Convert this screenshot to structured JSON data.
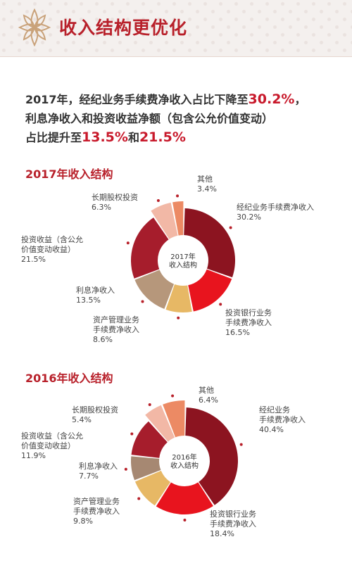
{
  "header": {
    "title": "收入结构更优化"
  },
  "summary": {
    "line1_prefix": "2017年，经纪业务手续费净收入占比下降至",
    "line1_value": "30.2%",
    "line1_suffix": "，",
    "line2": "利息净收入和投资收益净额（包含公允价值变动）",
    "line3_prefix": "占比提升至",
    "line3_value_a": "13.5%",
    "line3_mid": "和",
    "line3_value_b": "21.5%"
  },
  "chart_data": [
    {
      "type": "pie",
      "title": "2017年收入结构",
      "center_label": [
        "2017年",
        "收入结构"
      ],
      "slices": [
        {
          "name": [
            "经纪业务手续费净收入"
          ],
          "value": 30.2,
          "value_label": "30.2%",
          "color": "#8c1420",
          "side": "right"
        },
        {
          "name": [
            "投资银行业务",
            "手续费净收入"
          ],
          "value": 16.5,
          "value_label": "16.5%",
          "color": "#e8141e",
          "side": "right"
        },
        {
          "name": [
            "资产管理业务",
            "手续费净收入"
          ],
          "value": 8.6,
          "value_label": "8.6%",
          "color": "#e7b865",
          "side": "left"
        },
        {
          "name": [
            "利息净收入"
          ],
          "value": 13.5,
          "value_label": "13.5%",
          "color": "#b6977b",
          "side": "left"
        },
        {
          "name": [
            "投资收益（含公允",
            "价值变动收益）"
          ],
          "value": 21.5,
          "value_label": "21.5%",
          "color": "#a61d2c",
          "side": "left"
        },
        {
          "name": [
            "长期股权投资"
          ],
          "value": 6.3,
          "value_label": "6.3%",
          "color": "#f2b8a6",
          "side": "left"
        },
        {
          "name": [
            "其他"
          ],
          "value": 3.4,
          "value_label": "3.4%",
          "color": "#ec8a64",
          "side": "left"
        }
      ]
    },
    {
      "type": "pie",
      "title": "2016年收入结构",
      "center_label": [
        "2016年",
        "收入结构"
      ],
      "slices": [
        {
          "name": [
            "经纪业务",
            "手续费净收入"
          ],
          "value": 40.4,
          "value_label": "40.4%",
          "color": "#8c1420",
          "side": "right"
        },
        {
          "name": [
            "投资银行业务",
            "手续费净收入"
          ],
          "value": 18.4,
          "value_label": "18.4%",
          "color": "#e8141e",
          "side": "right"
        },
        {
          "name": [
            "资产管理业务",
            "手续费净收入"
          ],
          "value": 9.8,
          "value_label": "9.8%",
          "color": "#e7b865",
          "side": "left"
        },
        {
          "name": [
            "利息净收入"
          ],
          "value": 7.7,
          "value_label": "7.7%",
          "color": "#a68872",
          "side": "left"
        },
        {
          "name": [
            "投资收益（含公允",
            "价值变动收益）"
          ],
          "value": 11.9,
          "value_label": "11.9%",
          "color": "#a61d2c",
          "side": "left"
        },
        {
          "name": [
            "长期股权投资"
          ],
          "value": 5.4,
          "value_label": "5.4%",
          "color": "#f2b8a6",
          "side": "left"
        },
        {
          "name": [
            "其他"
          ],
          "value": 6.4,
          "value_label": "6.4%",
          "color": "#ec8a64",
          "side": "left"
        }
      ]
    }
  ]
}
